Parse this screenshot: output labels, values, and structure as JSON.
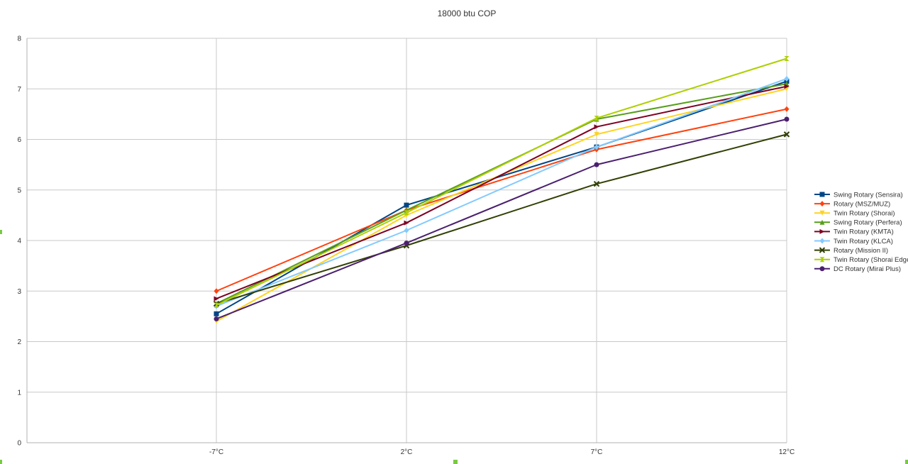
{
  "chart_data": {
    "type": "line",
    "title": "18000 btu COP",
    "categories": [
      "-7°C",
      "2°C",
      "7°C",
      "12°C"
    ],
    "ylim": [
      0,
      8
    ],
    "yticks": [
      0,
      1,
      2,
      3,
      4,
      5,
      6,
      7,
      8
    ],
    "grid": true,
    "legend": "right",
    "series": [
      {
        "name": "Swing Rotary (Sensira)",
        "color": "#004586",
        "marker": "square",
        "values": [
          2.55,
          4.7,
          5.85,
          7.15
        ]
      },
      {
        "name": "Rotary (MSZ/MUZ)",
        "color": "#ff420e",
        "marker": "diamond",
        "values": [
          3.0,
          4.6,
          5.8,
          6.6
        ]
      },
      {
        "name": "Twin Rotary (Shorai)",
        "color": "#ffd320",
        "marker": "triangle-down",
        "values": [
          2.4,
          4.5,
          6.1,
          7.0
        ]
      },
      {
        "name": "Swing Rotary (Perfera)",
        "color": "#579d1c",
        "marker": "triangle-up",
        "values": [
          2.75,
          4.6,
          6.4,
          7.1
        ]
      },
      {
        "name": "Twin Rotary (KMTA)",
        "color": "#7e0021",
        "marker": "triangle-right",
        "values": [
          2.85,
          4.35,
          6.25,
          7.05
        ]
      },
      {
        "name": "Twin Rotary (KLCA)",
        "color": "#83caff",
        "marker": "diamond",
        "values": [
          2.7,
          4.2,
          5.85,
          7.2
        ]
      },
      {
        "name": "Rotary (Mission II)",
        "color": "#314004",
        "marker": "x",
        "values": [
          2.75,
          3.9,
          5.12,
          6.1
        ]
      },
      {
        "name": "Twin Rotary (Shorai Edge)",
        "color": "#aecf00",
        "marker": "hourglass",
        "values": [
          2.72,
          4.55,
          6.42,
          7.6
        ]
      },
      {
        "name": "DC Rotary (Mirai Plus)",
        "color": "#4b1f6f",
        "marker": "circle",
        "values": [
          2.45,
          3.95,
          5.5,
          6.4
        ]
      }
    ]
  }
}
